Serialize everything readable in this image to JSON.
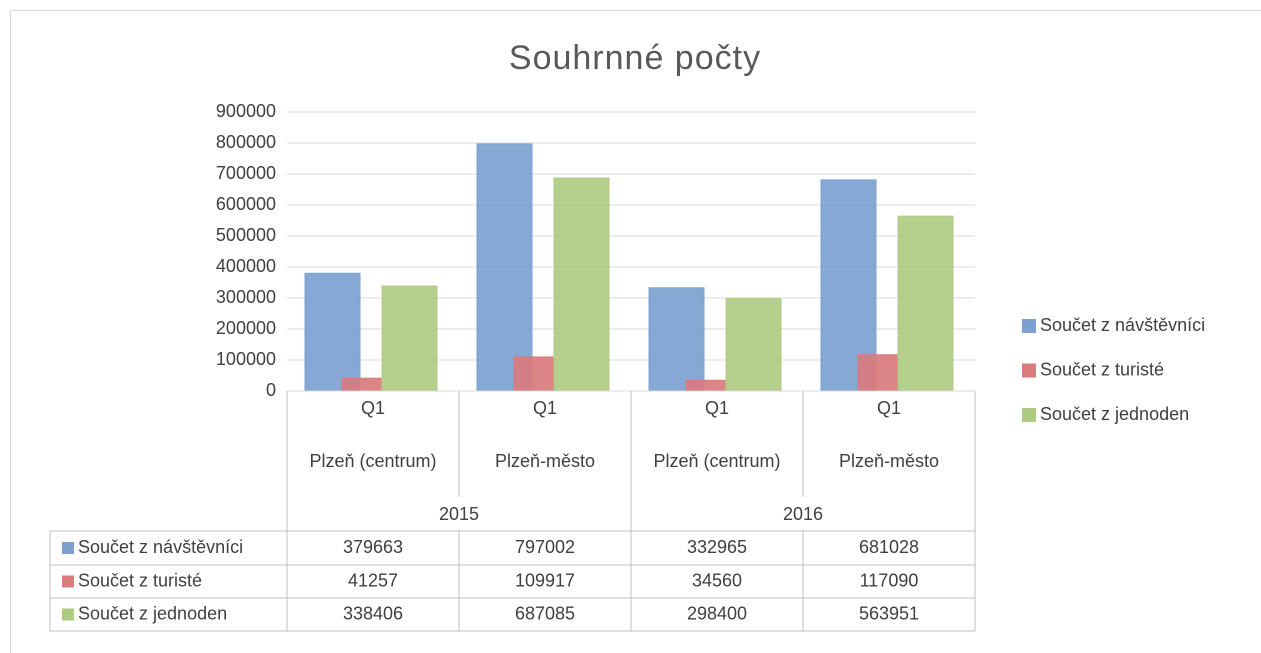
{
  "chart_data": {
    "type": "bar",
    "title": "Souhrnné počty",
    "categories": [
      "Q1",
      "Q1",
      "Q1",
      "Q1"
    ],
    "places": [
      "Plzeň (centrum)",
      "Plzeň-město",
      "Plzeň (centrum)",
      "Plzeň-město"
    ],
    "years": [
      "2015",
      "2016"
    ],
    "series": [
      {
        "name": "Součet z návštěvníci",
        "color": "#7ca1d0",
        "values": [
          379663,
          797002,
          332965,
          681028
        ]
      },
      {
        "name": "Součet z turisté",
        "color": "#d97b7d",
        "values": [
          41257,
          109917,
          34560,
          117090
        ]
      },
      {
        "name": "Součet z jednoden",
        "color": "#afcb82",
        "values": [
          338406,
          687085,
          298400,
          563951
        ]
      }
    ],
    "ylim": [
      0,
      900000
    ],
    "yticks": [
      0,
      100000,
      200000,
      300000,
      400000,
      500000,
      600000,
      700000,
      800000,
      900000
    ],
    "grid": true,
    "legend": "right",
    "data_table": true
  }
}
